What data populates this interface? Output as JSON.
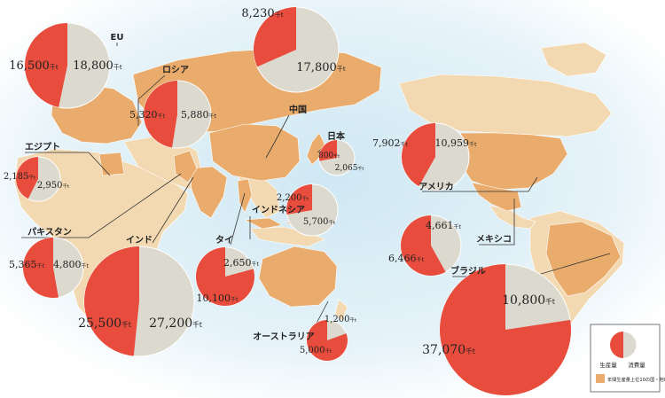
{
  "colors": {
    "production": "#e84c3d",
    "consumption": "#dcd9cf",
    "top10_land": "#e9ac6c",
    "other_land": "#f3d9b1",
    "sea": "#dbeef6"
  },
  "unit": "千t",
  "countries": [
    {
      "id": "eu",
      "name": "EU",
      "production": "16,500",
      "consumption": "18,800",
      "prod_share": 0.467
    },
    {
      "id": "russia",
      "name": "ロシア",
      "production": "5,320",
      "consumption": "5,880",
      "prod_share": 0.475
    },
    {
      "id": "china",
      "name": "中国",
      "production": "8,230",
      "consumption": "17,800",
      "prod_share": 0.316
    },
    {
      "id": "japan",
      "name": "日本",
      "production": "800",
      "consumption": "2,065",
      "prod_share": 0.279
    },
    {
      "id": "egypt",
      "name": "エジプト",
      "production": "2,185",
      "consumption": "2,950",
      "prod_share": 0.425
    },
    {
      "id": "pakistan",
      "name": "パキスタン",
      "production": "5,365",
      "consumption": "4,800",
      "prod_share": 0.528
    },
    {
      "id": "india",
      "name": "インド",
      "production": "25,500",
      "consumption": "27,200",
      "prod_share": 0.484
    },
    {
      "id": "thailand",
      "name": "タイ",
      "production": "10,100",
      "consumption": "2,650",
      "prod_share": 0.792
    },
    {
      "id": "indonesia",
      "name": "インドネシア",
      "production": "2,200",
      "consumption": "5,700",
      "prod_share": 0.278
    },
    {
      "id": "australia",
      "name": "オーストラリア",
      "production": "5,000",
      "consumption": "1,200",
      "prod_share": 0.806
    },
    {
      "id": "usa",
      "name": "アメリカ",
      "production": "7,902",
      "consumption": "10,959",
      "prod_share": 0.419
    },
    {
      "id": "mexico",
      "name": "メキシコ",
      "production": "6,466",
      "consumption": "4,661",
      "prod_share": 0.581
    },
    {
      "id": "brazil",
      "name": "ブラジル",
      "production": "37,070",
      "consumption": "10,800",
      "prod_share": 0.774
    }
  ],
  "legend": {
    "production": "生産量",
    "consumption": "消費量",
    "top10": "年間生産量上位10の国・地域"
  }
}
